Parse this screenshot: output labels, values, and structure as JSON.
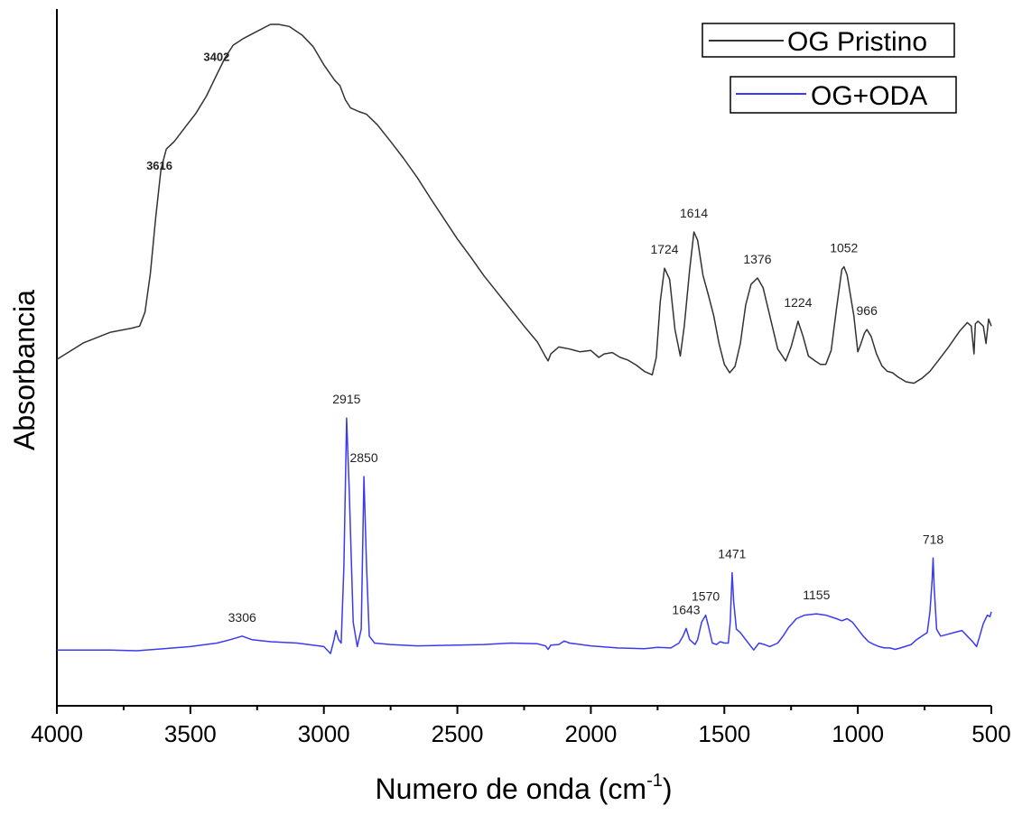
{
  "chart_data": {
    "type": "line",
    "title": "",
    "xlabel": "Numero de onda (cm",
    "xlabel_sup": "-1",
    "xlabel_close": ")",
    "ylabel": "Absorbancia",
    "xlim": [
      4000,
      500
    ],
    "x_reversed": true,
    "y_ticks_shown": false,
    "ylim": [
      0,
      1
    ],
    "x_ticks": [
      4000,
      3500,
      3000,
      2500,
      2000,
      1500,
      1000,
      500
    ],
    "x_tick_labels": [
      "4000",
      "3500",
      "3000",
      "2500",
      "2000",
      "1500",
      "1000",
      "500"
    ],
    "legend_position": "top-right",
    "series": [
      {
        "name": "OG Pristino",
        "color": "#333333",
        "points": [
          [
            4000,
            0.497
          ],
          [
            3900,
            0.521
          ],
          [
            3800,
            0.536
          ],
          [
            3720,
            0.542
          ],
          [
            3690,
            0.545
          ],
          [
            3670,
            0.565
          ],
          [
            3650,
            0.62
          ],
          [
            3630,
            0.7
          ],
          [
            3610,
            0.77
          ],
          [
            3590,
            0.799
          ],
          [
            3560,
            0.81
          ],
          [
            3520,
            0.83
          ],
          [
            3480,
            0.85
          ],
          [
            3440,
            0.875
          ],
          [
            3402,
            0.905
          ],
          [
            3370,
            0.93
          ],
          [
            3340,
            0.948
          ],
          [
            3300,
            0.958
          ],
          [
            3250,
            0.968
          ],
          [
            3200,
            0.978
          ],
          [
            3170,
            0.978
          ],
          [
            3130,
            0.975
          ],
          [
            3080,
            0.962
          ],
          [
            3040,
            0.946
          ],
          [
            3000,
            0.92
          ],
          [
            2960,
            0.898
          ],
          [
            2940,
            0.89
          ],
          [
            2920,
            0.87
          ],
          [
            2900,
            0.858
          ],
          [
            2870,
            0.853
          ],
          [
            2840,
            0.849
          ],
          [
            2800,
            0.834
          ],
          [
            2750,
            0.81
          ],
          [
            2700,
            0.785
          ],
          [
            2650,
            0.758
          ],
          [
            2600,
            0.728
          ],
          [
            2550,
            0.699
          ],
          [
            2500,
            0.67
          ],
          [
            2450,
            0.644
          ],
          [
            2400,
            0.617
          ],
          [
            2350,
            0.593
          ],
          [
            2300,
            0.569
          ],
          [
            2250,
            0.545
          ],
          [
            2200,
            0.522
          ],
          [
            2170,
            0.501
          ],
          [
            2160,
            0.495
          ],
          [
            2150,
            0.505
          ],
          [
            2120,
            0.515
          ],
          [
            2080,
            0.512
          ],
          [
            2040,
            0.508
          ],
          [
            2000,
            0.51
          ],
          [
            1970,
            0.5
          ],
          [
            1950,
            0.505
          ],
          [
            1920,
            0.507
          ],
          [
            1890,
            0.5
          ],
          [
            1860,
            0.496
          ],
          [
            1830,
            0.489
          ],
          [
            1800,
            0.48
          ],
          [
            1770,
            0.475
          ],
          [
            1755,
            0.5
          ],
          [
            1740,
            0.58
          ],
          [
            1724,
            0.628
          ],
          [
            1705,
            0.612
          ],
          [
            1685,
            0.54
          ],
          [
            1665,
            0.502
          ],
          [
            1650,
            0.545
          ],
          [
            1630,
            0.625
          ],
          [
            1614,
            0.68
          ],
          [
            1600,
            0.668
          ],
          [
            1580,
            0.618
          ],
          [
            1560,
            0.59
          ],
          [
            1540,
            0.56
          ],
          [
            1520,
            0.52
          ],
          [
            1500,
            0.49
          ],
          [
            1480,
            0.478
          ],
          [
            1460,
            0.487
          ],
          [
            1440,
            0.52
          ],
          [
            1420,
            0.575
          ],
          [
            1400,
            0.605
          ],
          [
            1376,
            0.614
          ],
          [
            1355,
            0.6
          ],
          [
            1330,
            0.56
          ],
          [
            1300,
            0.512
          ],
          [
            1270,
            0.495
          ],
          [
            1250,
            0.515
          ],
          [
            1224,
            0.552
          ],
          [
            1205,
            0.53
          ],
          [
            1185,
            0.502
          ],
          [
            1160,
            0.495
          ],
          [
            1140,
            0.49
          ],
          [
            1120,
            0.49
          ],
          [
            1100,
            0.51
          ],
          [
            1080,
            0.57
          ],
          [
            1060,
            0.626
          ],
          [
            1052,
            0.63
          ],
          [
            1040,
            0.618
          ],
          [
            1015,
            0.56
          ],
          [
            1000,
            0.508
          ],
          [
            990,
            0.518
          ],
          [
            975,
            0.535
          ],
          [
            966,
            0.54
          ],
          [
            950,
            0.53
          ],
          [
            930,
            0.505
          ],
          [
            910,
            0.488
          ],
          [
            890,
            0.48
          ],
          [
            870,
            0.478
          ],
          [
            850,
            0.472
          ],
          [
            820,
            0.465
          ],
          [
            790,
            0.463
          ],
          [
            760,
            0.47
          ],
          [
            730,
            0.48
          ],
          [
            700,
            0.495
          ],
          [
            660,
            0.515
          ],
          [
            620,
            0.537
          ],
          [
            590,
            0.55
          ],
          [
            575,
            0.545
          ],
          [
            565,
            0.505
          ],
          [
            560,
            0.548
          ],
          [
            550,
            0.552
          ],
          [
            530,
            0.545
          ],
          [
            520,
            0.52
          ],
          [
            510,
            0.555
          ],
          [
            500,
            0.545
          ]
        ],
        "labels": [
          {
            "x": 3616,
            "text": "3616",
            "bold": true
          },
          {
            "x": 3402,
            "text": "3402",
            "bold": true
          },
          {
            "x": 1724,
            "text": "1724"
          },
          {
            "x": 1614,
            "text": "1614"
          },
          {
            "x": 1376,
            "text": "1376"
          },
          {
            "x": 1224,
            "text": "1224"
          },
          {
            "x": 1052,
            "text": "1052"
          },
          {
            "x": 966,
            "text": "966"
          }
        ]
      },
      {
        "name": "OG+ODA",
        "color": "#3a3af0",
        "points": [
          [
            4000,
            0.08
          ],
          [
            3900,
            0.08
          ],
          [
            3800,
            0.08
          ],
          [
            3700,
            0.079
          ],
          [
            3600,
            0.082
          ],
          [
            3500,
            0.085
          ],
          [
            3400,
            0.09
          ],
          [
            3350,
            0.095
          ],
          [
            3306,
            0.1
          ],
          [
            3270,
            0.095
          ],
          [
            3200,
            0.092
          ],
          [
            3100,
            0.09
          ],
          [
            3000,
            0.085
          ],
          [
            2975,
            0.075
          ],
          [
            2962,
            0.095
          ],
          [
            2955,
            0.108
          ],
          [
            2945,
            0.095
          ],
          [
            2935,
            0.09
          ],
          [
            2925,
            0.2
          ],
          [
            2915,
            0.413
          ],
          [
            2905,
            0.31
          ],
          [
            2890,
            0.12
          ],
          [
            2875,
            0.085
          ],
          [
            2860,
            0.11
          ],
          [
            2850,
            0.329
          ],
          [
            2840,
            0.2
          ],
          [
            2830,
            0.1
          ],
          [
            2810,
            0.09
          ],
          [
            2750,
            0.088
          ],
          [
            2650,
            0.086
          ],
          [
            2500,
            0.087
          ],
          [
            2400,
            0.088
          ],
          [
            2300,
            0.09
          ],
          [
            2200,
            0.089
          ],
          [
            2170,
            0.086
          ],
          [
            2160,
            0.081
          ],
          [
            2150,
            0.087
          ],
          [
            2120,
            0.088
          ],
          [
            2100,
            0.093
          ],
          [
            2080,
            0.09
          ],
          [
            2000,
            0.086
          ],
          [
            1900,
            0.083
          ],
          [
            1800,
            0.082
          ],
          [
            1750,
            0.084
          ],
          [
            1700,
            0.083
          ],
          [
            1670,
            0.09
          ],
          [
            1655,
            0.1
          ],
          [
            1643,
            0.111
          ],
          [
            1630,
            0.095
          ],
          [
            1610,
            0.088
          ],
          [
            1600,
            0.095
          ],
          [
            1585,
            0.12
          ],
          [
            1570,
            0.13
          ],
          [
            1560,
            0.115
          ],
          [
            1545,
            0.09
          ],
          [
            1530,
            0.088
          ],
          [
            1515,
            0.092
          ],
          [
            1500,
            0.09
          ],
          [
            1485,
            0.09
          ],
          [
            1478,
            0.12
          ],
          [
            1471,
            0.191
          ],
          [
            1465,
            0.15
          ],
          [
            1455,
            0.11
          ],
          [
            1440,
            0.105
          ],
          [
            1420,
            0.095
          ],
          [
            1400,
            0.085
          ],
          [
            1390,
            0.08
          ],
          [
            1370,
            0.09
          ],
          [
            1350,
            0.088
          ],
          [
            1330,
            0.085
          ],
          [
            1300,
            0.09
          ],
          [
            1280,
            0.1
          ],
          [
            1260,
            0.112
          ],
          [
            1230,
            0.125
          ],
          [
            1200,
            0.13
          ],
          [
            1155,
            0.132
          ],
          [
            1120,
            0.13
          ],
          [
            1080,
            0.125
          ],
          [
            1060,
            0.122
          ],
          [
            1040,
            0.125
          ],
          [
            1020,
            0.12
          ],
          [
            1000,
            0.11
          ],
          [
            980,
            0.1
          ],
          [
            960,
            0.092
          ],
          [
            940,
            0.088
          ],
          [
            920,
            0.085
          ],
          [
            900,
            0.083
          ],
          [
            880,
            0.083
          ],
          [
            860,
            0.081
          ],
          [
            840,
            0.083
          ],
          [
            800,
            0.088
          ],
          [
            780,
            0.095
          ],
          [
            760,
            0.1
          ],
          [
            740,
            0.105
          ],
          [
            730,
            0.135
          ],
          [
            722,
            0.18
          ],
          [
            718,
            0.212
          ],
          [
            714,
            0.17
          ],
          [
            705,
            0.11
          ],
          [
            690,
            0.1
          ],
          [
            670,
            0.102
          ],
          [
            640,
            0.105
          ],
          [
            610,
            0.108
          ],
          [
            590,
            0.1
          ],
          [
            570,
            0.092
          ],
          [
            555,
            0.085
          ],
          [
            545,
            0.098
          ],
          [
            530,
            0.118
          ],
          [
            515,
            0.13
          ],
          [
            505,
            0.128
          ],
          [
            500,
            0.135
          ]
        ],
        "labels": [
          {
            "x": 3306,
            "text": "3306"
          },
          {
            "x": 2915,
            "text": "2915"
          },
          {
            "x": 2850,
            "text": "2850"
          },
          {
            "x": 1643,
            "text": "1643"
          },
          {
            "x": 1570,
            "text": "1570"
          },
          {
            "x": 1471,
            "text": "1471"
          },
          {
            "x": 1155,
            "text": "1155"
          },
          {
            "x": 718,
            "text": "718"
          }
        ]
      }
    ]
  }
}
